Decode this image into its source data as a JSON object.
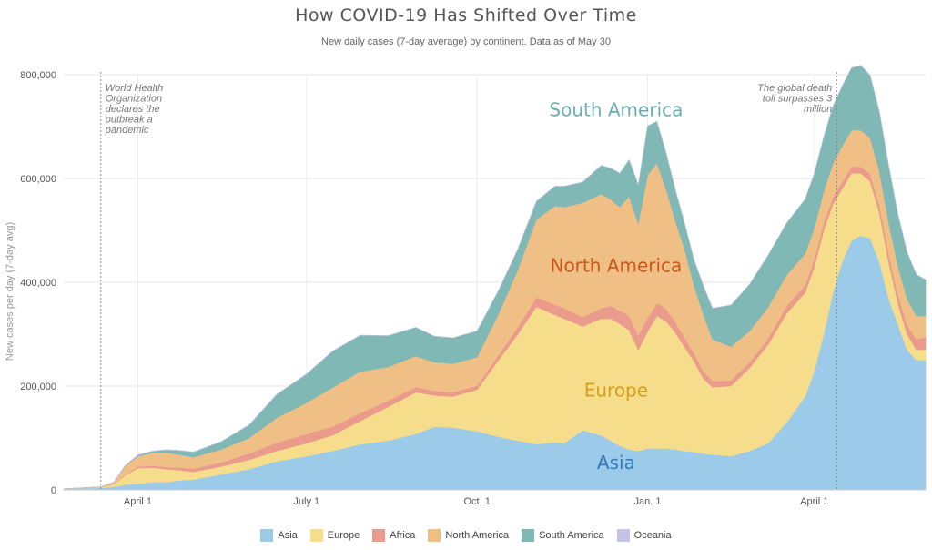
{
  "chart_data": {
    "type": "area",
    "stacked": true,
    "title": "How COVID-19 Has Shifted Over Time",
    "subtitle": "New daily cases (7-day average) by continent. Data as of May 30",
    "xlabel": "",
    "ylabel": "New cases per day (7-day avg)",
    "ylim": [
      0,
      800000
    ],
    "grid": true,
    "legend_position": "bottom",
    "x_tick_labels": [
      "April 1",
      "July 1",
      "Oct. 1",
      "Jan. 1",
      "April 1"
    ],
    "x_ticks_day": [
      40,
      131,
      223,
      315,
      405
    ],
    "y_ticks": [
      0,
      200000,
      400000,
      600000,
      800000
    ],
    "y_tick_labels": [
      "0",
      "200,000",
      "400,000",
      "600,000",
      "800,000"
    ],
    "x_unit": "days since Feb 21, 2020",
    "x_range": [
      0,
      465
    ],
    "x": [
      0,
      20,
      27,
      33,
      40,
      48,
      55,
      62,
      70,
      85,
      100,
      115,
      131,
      145,
      160,
      175,
      190,
      200,
      210,
      223,
      235,
      245,
      255,
      265,
      270,
      280,
      290,
      295,
      300,
      305,
      310,
      315,
      320,
      325,
      330,
      335,
      340,
      345,
      350,
      360,
      370,
      380,
      390,
      400,
      405,
      410,
      415,
      420,
      425,
      430,
      435,
      440,
      445,
      450,
      455,
      460,
      465
    ],
    "series": [
      {
        "name": "Asia",
        "color": "#9ccbe9",
        "values": [
          2000,
          4000,
          6000,
          10000,
          12000,
          15000,
          15000,
          18000,
          20000,
          30000,
          40000,
          55000,
          65000,
          75000,
          88000,
          95000,
          108000,
          122000,
          120000,
          113000,
          102000,
          95000,
          88000,
          92000,
          90000,
          115000,
          105000,
          95000,
          85000,
          78000,
          75000,
          80000,
          80000,
          80000,
          78000,
          75000,
          73000,
          70000,
          68000,
          65000,
          75000,
          90000,
          130000,
          180000,
          230000,
          300000,
          380000,
          440000,
          480000,
          490000,
          485000,
          440000,
          370000,
          320000,
          270000,
          250000,
          250000
        ]
      },
      {
        "name": "Europe",
        "color": "#f5dd8c",
        "values": [
          0,
          1000,
          5000,
          18000,
          30000,
          28000,
          25000,
          20000,
          15000,
          15000,
          18000,
          20000,
          25000,
          30000,
          45000,
          65000,
          80000,
          60000,
          60000,
          80000,
          150000,
          205000,
          265000,
          245000,
          240000,
          200000,
          225000,
          235000,
          235000,
          230000,
          195000,
          225000,
          255000,
          245000,
          225000,
          200000,
          175000,
          145000,
          130000,
          135000,
          160000,
          190000,
          210000,
          200000,
          200000,
          200000,
          170000,
          140000,
          130000,
          120000,
          110000,
          95000,
          70000,
          40000,
          30000,
          20000,
          20000
        ]
      },
      {
        "name": "Africa",
        "color": "#ea9b8c",
        "values": [
          0,
          0,
          1000,
          2000,
          3000,
          3500,
          4000,
          5000,
          6000,
          8000,
          12000,
          16000,
          18000,
          17000,
          15000,
          12000,
          10000,
          9000,
          8000,
          8000,
          10000,
          14000,
          18000,
          20000,
          20000,
          18000,
          20000,
          25000,
          25000,
          28000,
          28000,
          26000,
          25000,
          24000,
          20000,
          18000,
          16000,
          14000,
          12000,
          11000,
          11000,
          12000,
          14000,
          15000,
          15000,
          15000,
          14000,
          13000,
          13000,
          13000,
          14000,
          15000,
          16000,
          17000,
          18000,
          20000,
          25000
        ]
      },
      {
        "name": "North America",
        "color": "#f0bf86",
        "values": [
          0,
          1000,
          3000,
          15000,
          20000,
          25000,
          28000,
          25000,
          22000,
          25000,
          30000,
          48000,
          60000,
          75000,
          80000,
          65000,
          60000,
          55000,
          55000,
          55000,
          80000,
          110000,
          150000,
          190000,
          195000,
          220000,
          220000,
          205000,
          200000,
          230000,
          215000,
          275000,
          270000,
          230000,
          195000,
          170000,
          130000,
          110000,
          80000,
          65000,
          60000,
          60000,
          60000,
          60000,
          60000,
          60000,
          65000,
          70000,
          70000,
          70000,
          70000,
          65000,
          60000,
          55000,
          50000,
          45000,
          40000
        ]
      },
      {
        "name": "South America",
        "color": "#7fb8b5",
        "values": [
          0,
          0,
          0,
          1000,
          2000,
          3000,
          5000,
          8000,
          10000,
          15000,
          25000,
          45000,
          55000,
          70000,
          70000,
          60000,
          55000,
          50000,
          50000,
          50000,
          45000,
          40000,
          35000,
          38000,
          40000,
          40000,
          55000,
          60000,
          65000,
          70000,
          75000,
          95000,
          80000,
          70000,
          60000,
          50000,
          50000,
          55000,
          60000,
          80000,
          90000,
          100000,
          100000,
          105000,
          105000,
          105000,
          110000,
          115000,
          120000,
          125000,
          120000,
          115000,
          110000,
          100000,
          90000,
          80000,
          70000
        ]
      },
      {
        "name": "Oceania",
        "color": "#c5c3e8",
        "values": [
          0,
          0,
          0,
          300,
          500,
          500,
          500,
          300,
          200,
          200,
          300,
          500,
          500,
          300,
          200,
          200,
          200,
          200,
          200,
          200,
          200,
          200,
          200,
          200,
          200,
          200,
          200,
          200,
          200,
          200,
          200,
          200,
          200,
          200,
          200,
          200,
          200,
          200,
          200,
          200,
          200,
          200,
          200,
          200,
          200,
          200,
          200,
          200,
          200,
          200,
          200,
          200,
          200,
          200,
          200,
          200,
          200
        ]
      }
    ],
    "annotations": [
      {
        "text_lines": [
          "World Health",
          "Organization",
          "declares the",
          "outbreak a",
          "pandemic"
        ],
        "day": 20,
        "align": "left"
      },
      {
        "text_lines": [
          "The global death",
          "toll surpasses 3",
          "million"
        ],
        "day": 417,
        "align": "right"
      }
    ],
    "area_labels": [
      {
        "text": "South America",
        "day": 298,
        "value": 720000,
        "color": "#6aaeb2"
      },
      {
        "text": "North America",
        "day": 298,
        "value": 420000,
        "color": "#c9581a"
      },
      {
        "text": "Europe",
        "day": 298,
        "value": 180000,
        "color": "#d59e1a"
      },
      {
        "text": "Asia",
        "day": 298,
        "value": 40000,
        "color": "#3578b8"
      }
    ]
  }
}
